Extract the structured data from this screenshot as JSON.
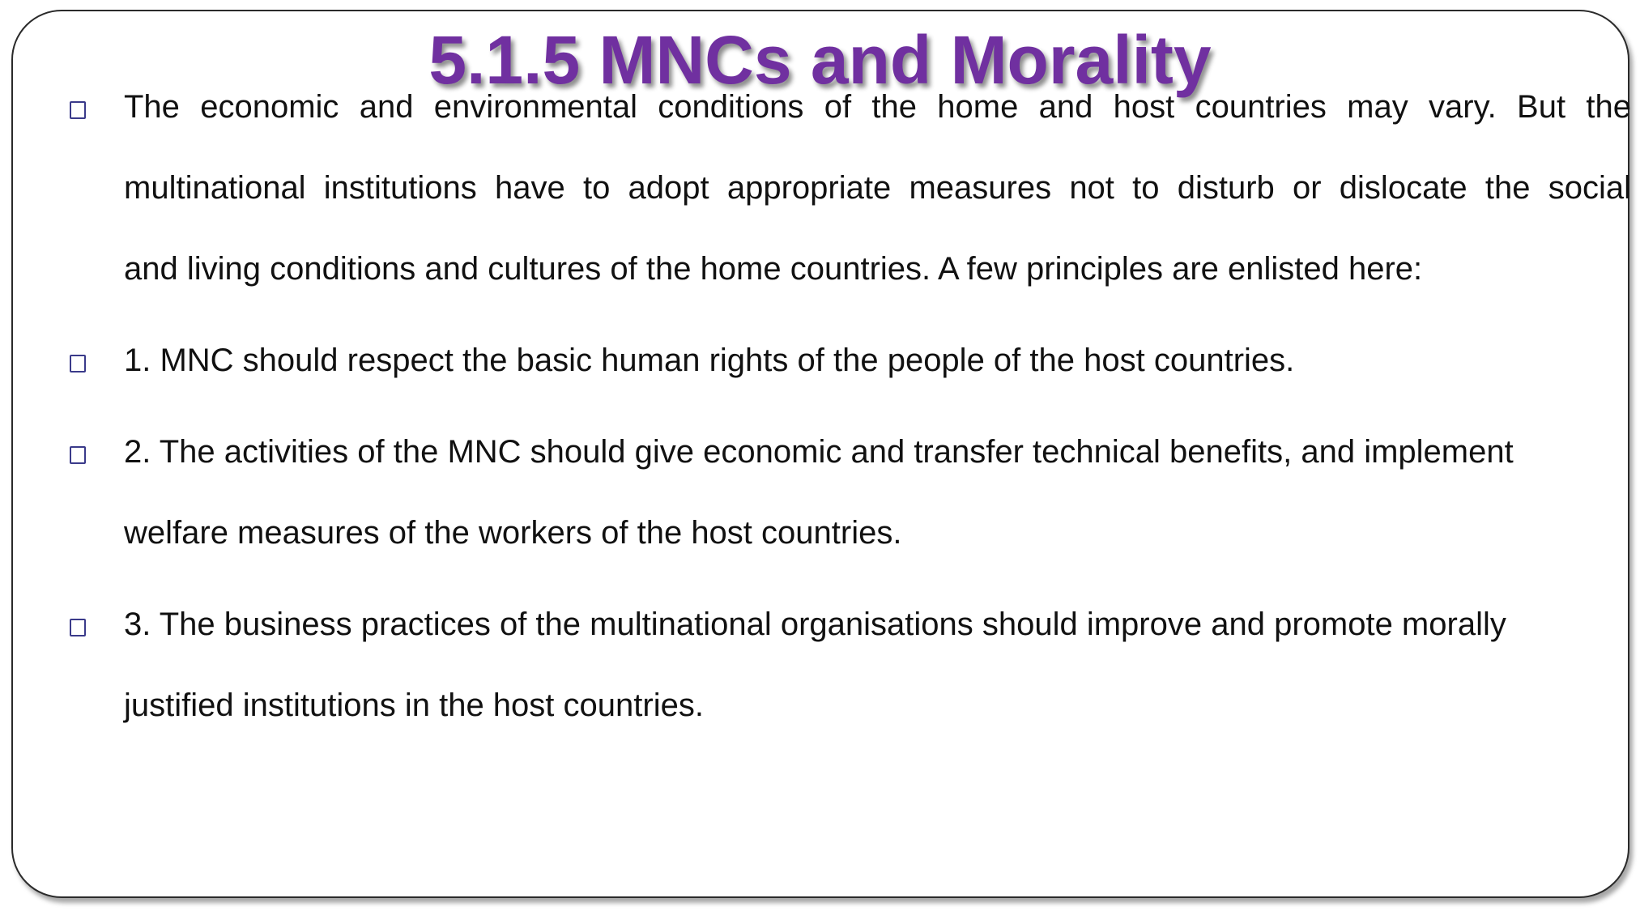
{
  "slide": {
    "title": "5.1.5 MNCs and Morality",
    "bullets": [
      {
        "icon": "square-bullet-icon",
        "lines": [
          "The economic and environmental conditions of the home and host countries may vary. But the",
          "multinational institutions have to adopt appropriate measures not to disturb or dislocate the social",
          "and  living conditions and cultures of the home countries. A few principles are enlisted here:"
        ]
      },
      {
        "icon": "square-bullet-icon",
        "lines": [
          "1. MNC should respect the basic human rights of the people of the host countries."
        ]
      },
      {
        "icon": "square-bullet-icon",
        "lines": [
          "2. The activities of the MNC should give economic and transfer technical benefits, and implement",
          "welfare measures of the workers of the host countries."
        ]
      },
      {
        "icon": "square-bullet-icon",
        "lines": [
          "3. The business practices of the multinational organisations should improve and promote morally",
          "justified institutions in the host countries."
        ]
      }
    ]
  },
  "colors": {
    "title": "#7030a0",
    "text": "#111111",
    "bullet": "#3a3a8a",
    "frame": "#2a2a2a"
  }
}
